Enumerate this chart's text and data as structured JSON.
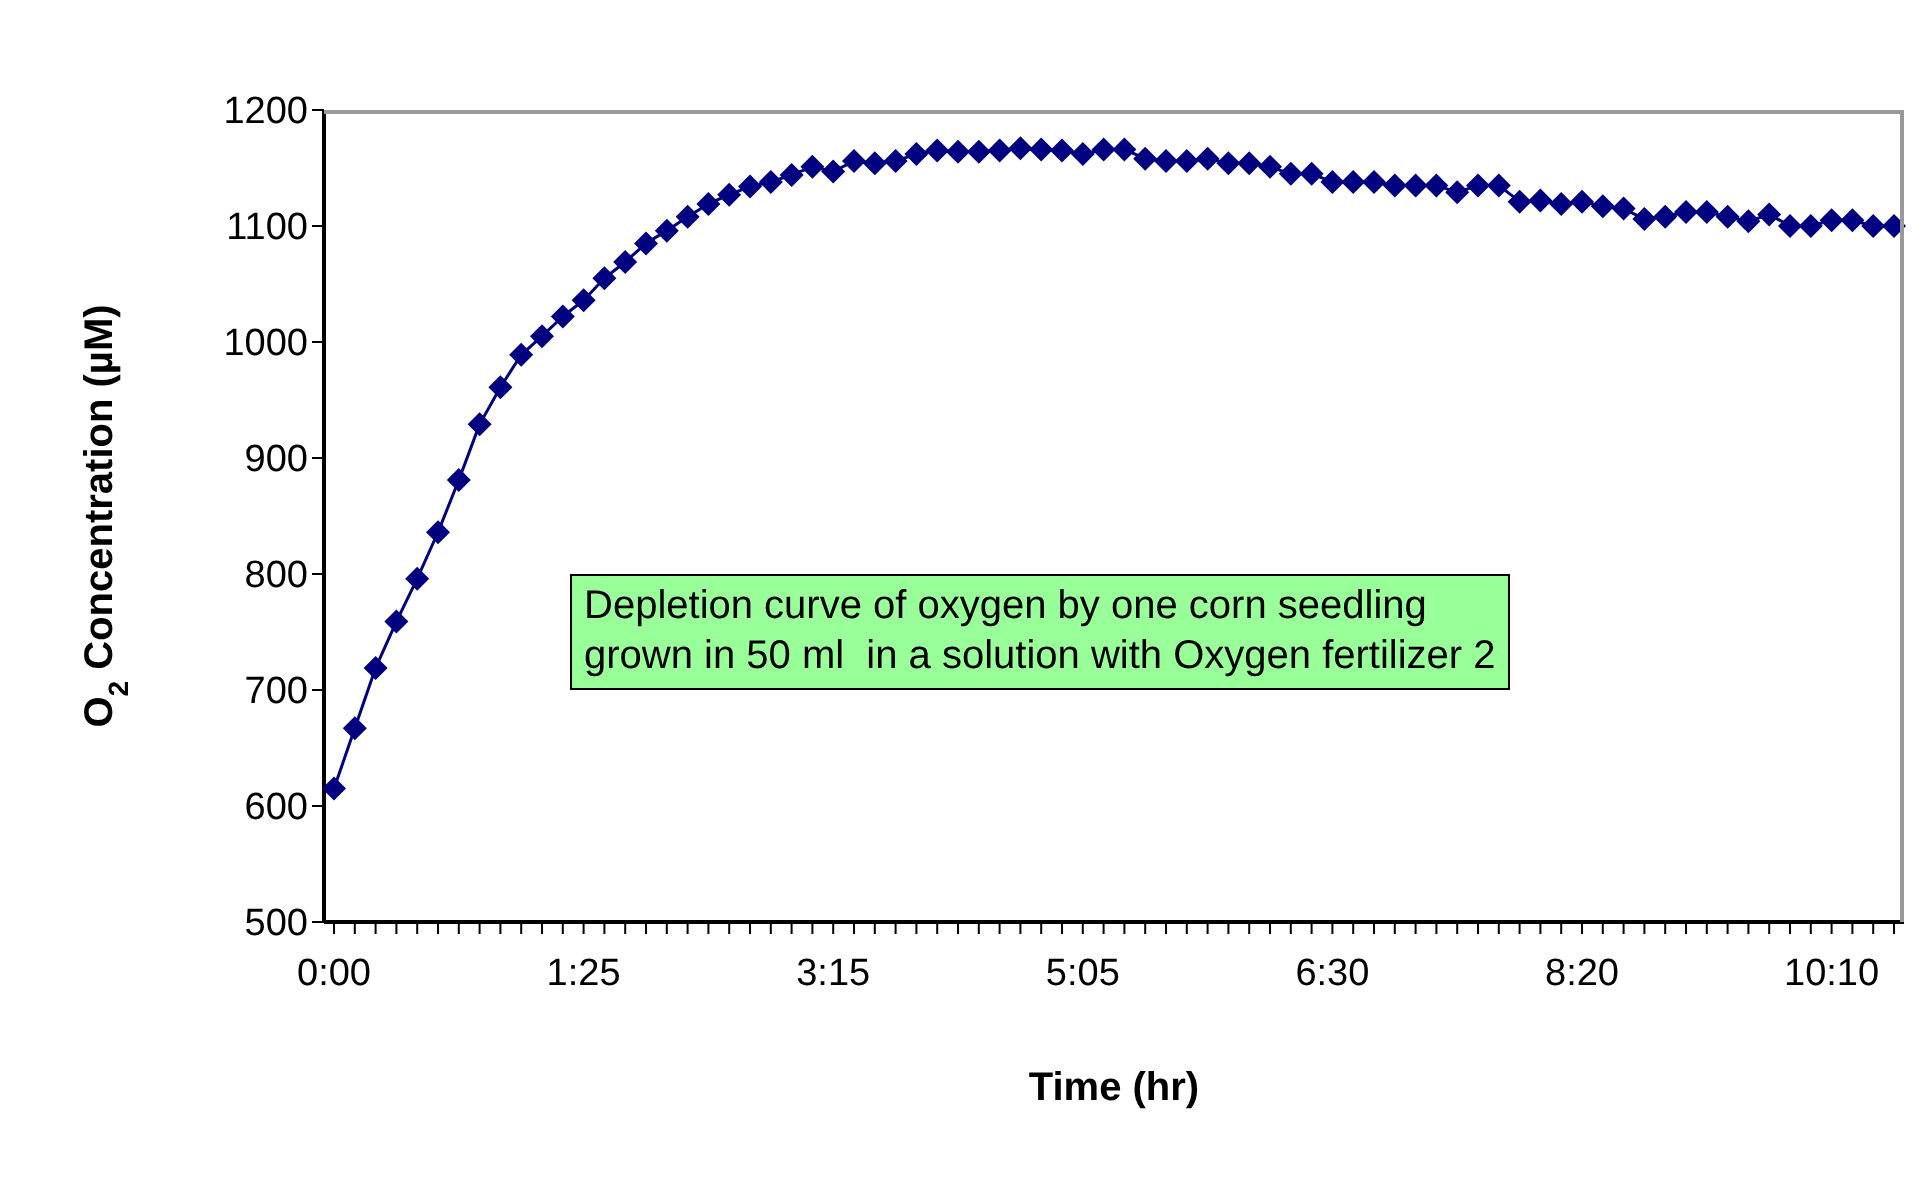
{
  "chart_data": {
    "type": "line",
    "xlabel": "Time (hr)",
    "ylabel": "O$_{2}$ Concentration (µM)",
    "categories": [
      "0:00",
      null,
      null,
      null,
      null,
      null,
      null,
      null,
      null,
      null,
      null,
      null,
      "1:25",
      null,
      null,
      null,
      null,
      null,
      null,
      null,
      null,
      null,
      null,
      null,
      "3:15",
      null,
      null,
      null,
      null,
      null,
      null,
      null,
      null,
      null,
      null,
      null,
      "5:05",
      null,
      null,
      null,
      null,
      null,
      null,
      null,
      null,
      null,
      null,
      null,
      "6:30",
      null,
      null,
      null,
      null,
      null,
      null,
      null,
      null,
      null,
      null,
      null,
      "8:20",
      null,
      null,
      null,
      null,
      null,
      null,
      null,
      null,
      null,
      null,
      null,
      "10:10",
      null,
      null,
      null
    ],
    "series": [
      {
        "color": "#000080",
        "values": [
          615,
          667,
          719,
          759,
          796,
          836,
          881,
          929,
          961,
          989,
          1005,
          1022,
          1036,
          1055,
          1069,
          1085,
          1096,
          1108,
          1119,
          1127,
          1134,
          1138,
          1144,
          1151,
          1147,
          1156,
          1154,
          1156,
          1162,
          1165,
          1164,
          1164,
          1165,
          1167,
          1166,
          1165,
          1162,
          1166,
          1166,
          1158,
          1156,
          1156,
          1158,
          1154,
          1154,
          1151,
          1145,
          1145,
          1138,
          1138,
          1138,
          1135,
          1135,
          1135,
          1129,
          1135,
          1135,
          1121,
          1122,
          1119,
          1121,
          1117,
          1115,
          1106,
          1108,
          1112,
          1112,
          1108,
          1104,
          1110,
          1100,
          1100,
          1105,
          1105,
          1100,
          1100
        ]
      }
    ],
    "ylim": [
      500,
      1200
    ],
    "yticks": [
      500,
      600,
      700,
      800,
      900,
      1000,
      1100,
      1200
    ],
    "grid": false,
    "legend": false,
    "marker": "diamond",
    "line_style": "solid",
    "annotations": [
      "Depletion curve of oxygen by one corn seedling\ngrown in 50 ml  in a solution with Oxygen fertilizer 2"
    ]
  }
}
